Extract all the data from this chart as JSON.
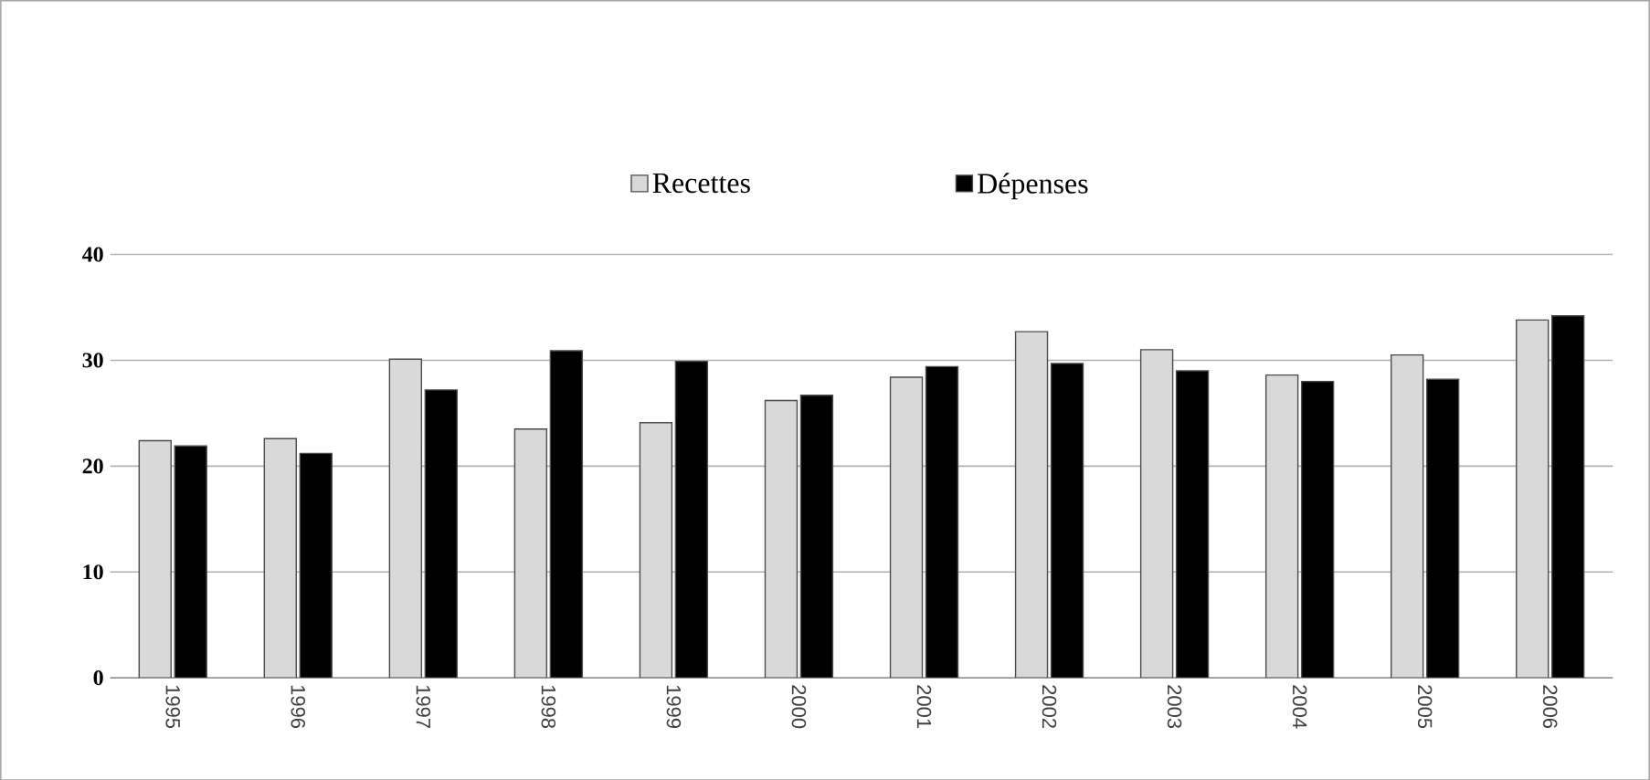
{
  "chart_data": {
    "type": "bar",
    "categories": [
      "1995",
      "1996",
      "1997",
      "1998",
      "1999",
      "2000",
      "2001",
      "2002",
      "2003",
      "2004",
      "2005",
      "2006"
    ],
    "series": [
      {
        "name": "Recettes",
        "color": "#d9d9d9",
        "values": [
          22.4,
          22.6,
          30.1,
          23.5,
          24.1,
          26.2,
          28.4,
          32.7,
          31.0,
          28.6,
          30.5,
          33.8
        ]
      },
      {
        "name": "Dépenses",
        "color": "#000000",
        "values": [
          21.9,
          21.2,
          27.2,
          30.9,
          29.9,
          26.7,
          29.4,
          29.7,
          29.0,
          28.0,
          28.2,
          34.2
        ]
      }
    ],
    "ylim": [
      0,
      40
    ],
    "yticks": [
      0,
      10,
      20,
      30,
      40
    ],
    "grid": "y",
    "legend": "top"
  }
}
